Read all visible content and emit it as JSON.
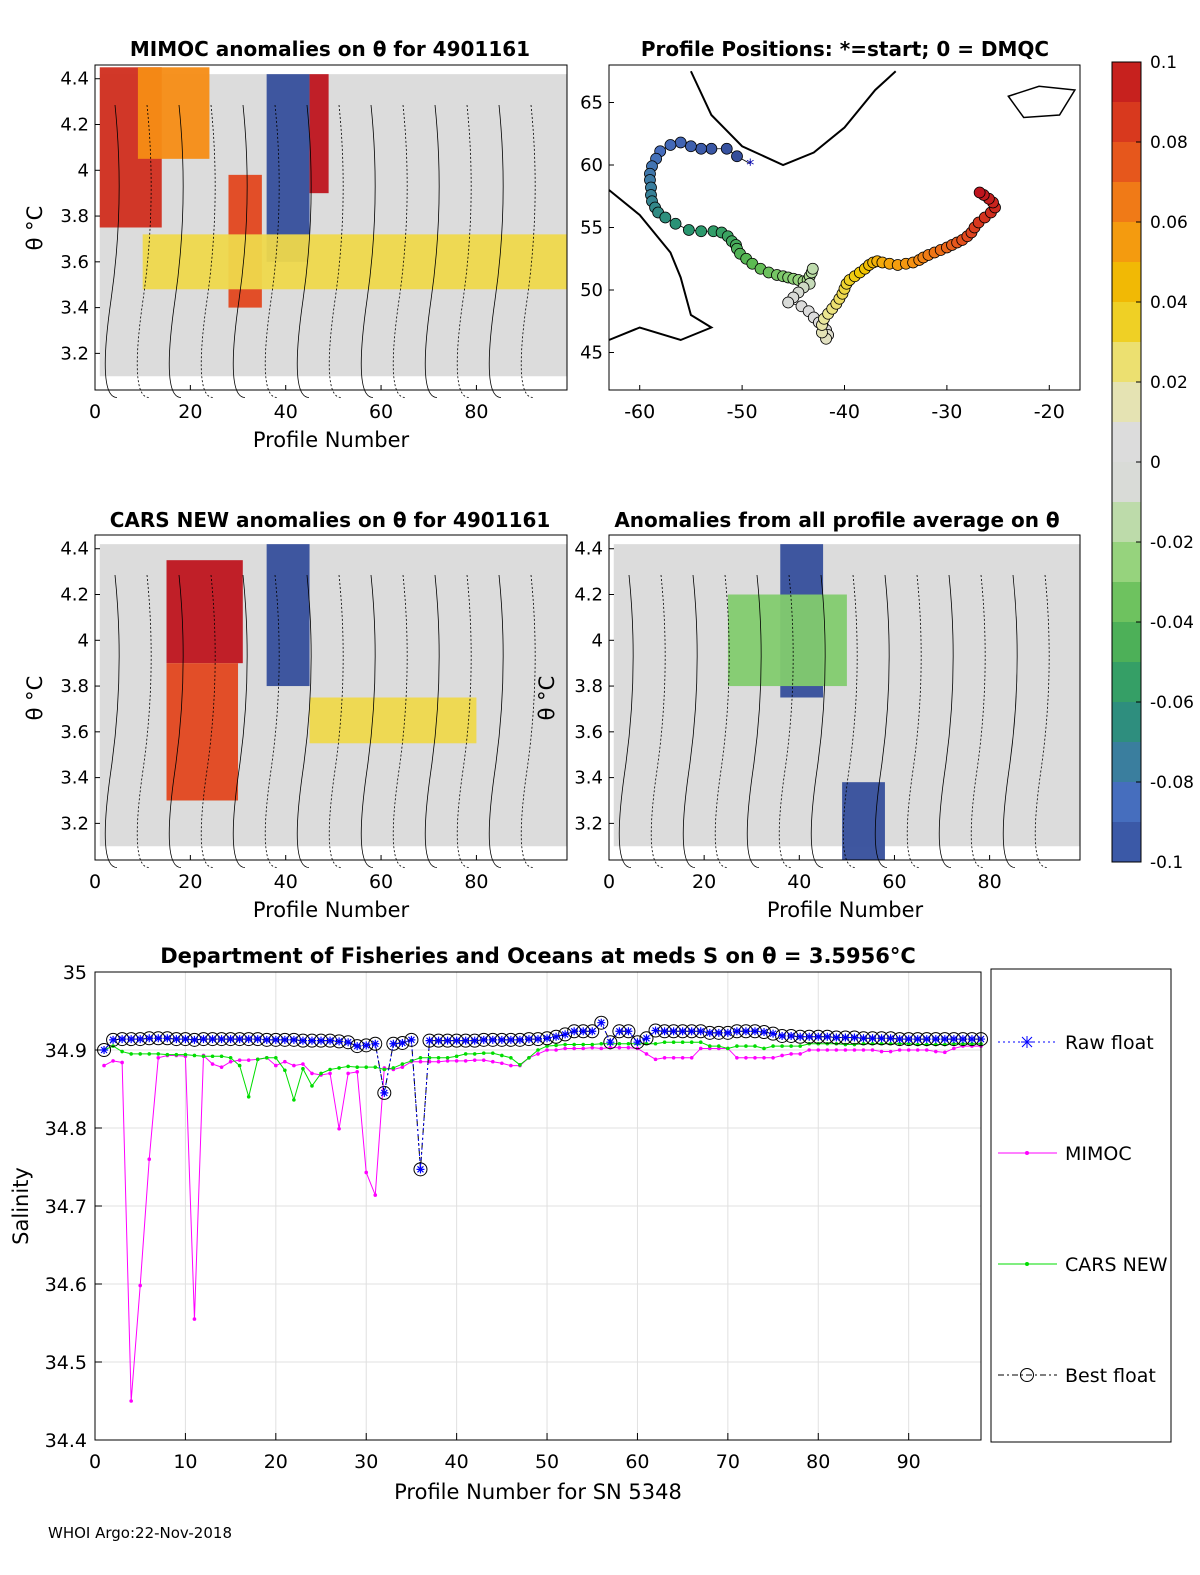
{
  "footer": "WHOI Argo:22-Nov-2018",
  "colorbar": {
    "ticks": [
      "0.1",
      "0.08",
      "0.06",
      "0.04",
      "0.02",
      "0",
      "-0.02",
      "-0.04",
      "-0.06",
      "-0.08",
      "-0.1"
    ],
    "range": [
      -0.1,
      0.1
    ]
  },
  "chart_data": [
    {
      "id": "mimoc_anom",
      "type": "heatmap",
      "title": "MIMOC anomalies on θ  for 4901161",
      "xlabel": "Profile Number",
      "ylabel": "θ °C",
      "xlim": [
        0,
        99
      ],
      "ylim": [
        3.04,
        4.46
      ],
      "xticks": [
        0,
        20,
        40,
        60,
        80
      ],
      "yticks": [
        3.2,
        3.4,
        3.6,
        3.8,
        4,
        4.2,
        4.4
      ],
      "color_range": [
        -0.1,
        0.1
      ],
      "features": [
        {
          "desc": "positive anomaly block",
          "x": [
            1,
            14
          ],
          "y": [
            3.75,
            4.45
          ],
          "value": 0.09
        },
        {
          "desc": "positive anomaly block",
          "x": [
            9,
            24
          ],
          "y": [
            4.05,
            4.45
          ],
          "value": 0.06
        },
        {
          "desc": "positive anomaly block",
          "x": [
            28,
            35
          ],
          "y": [
            3.4,
            3.98
          ],
          "value": 0.08
        },
        {
          "desc": "negative anomaly column",
          "x": [
            36,
            45
          ],
          "y": [
            3.6,
            4.42
          ],
          "value": -0.1
        },
        {
          "desc": "positive anomaly column",
          "x": [
            45,
            49
          ],
          "y": [
            3.9,
            4.42
          ],
          "value": 0.1
        },
        {
          "desc": "weak positive band",
          "x": [
            10,
            99
          ],
          "y": [
            3.48,
            3.72
          ],
          "value": 0.03
        }
      ]
    },
    {
      "id": "positions",
      "type": "scatter",
      "title": "Profile Positions: *=start; 0 = DMQC",
      "xlim": [
        -63,
        -17
      ],
      "ylim": [
        42,
        68
      ],
      "xticks": [
        -60,
        -50,
        -40,
        -30,
        -20
      ],
      "yticks": [
        45,
        50,
        55,
        60,
        65
      ],
      "start": [
        -49.2,
        60.1
      ],
      "lon": [
        -50.5,
        -51.5,
        -53,
        -54,
        -55,
        -56,
        -57,
        -58,
        -58.4,
        -58.8,
        -59,
        -59,
        -58.9,
        -58.9,
        -58.8,
        -58.5,
        -58.2,
        -57.5,
        -56.5,
        -55.2,
        -54,
        -52.8,
        -52,
        -51.4,
        -51,
        -50.6,
        -50.5,
        -50.2,
        -49.6,
        -49,
        -48.2,
        -47.4,
        -46.6,
        -46,
        -45.5,
        -45,
        -44.5,
        -44,
        -43.6,
        -43.4,
        -43.2,
        -43.1,
        -43.4,
        -44,
        -44.5,
        -45,
        -45.5,
        -44.2,
        -43.5,
        -43,
        -42.5,
        -42.1,
        -41.8,
        -41.6,
        -41.8,
        -42.2,
        -42.2,
        -42,
        -41.6,
        -41.2,
        -40.8,
        -40.5,
        -40.2,
        -40,
        -39.8,
        -39.5,
        -39,
        -38.5,
        -38,
        -37.6,
        -37.2,
        -36.8,
        -36.3,
        -35.6,
        -34.8,
        -34,
        -33.3,
        -32.7,
        -32.3,
        -31.8,
        -31.2,
        -30.6,
        -30,
        -29.5,
        -29,
        -28.5,
        -28,
        -27.6,
        -27.3,
        -26.9,
        -26.3,
        -25.7,
        -25.3,
        -25.5,
        -25.9,
        -26.4,
        -26.8
      ],
      "lat": [
        60.7,
        61.3,
        61.3,
        61.3,
        61.5,
        61.8,
        61.6,
        61.1,
        60.5,
        59.9,
        59.3,
        58.8,
        58.2,
        57.6,
        57.1,
        56.6,
        56.2,
        55.8,
        55.3,
        54.8,
        54.7,
        54.7,
        54.6,
        54.3,
        53.9,
        53.6,
        53.3,
        52.9,
        52.5,
        52.1,
        51.7,
        51.4,
        51.2,
        51.1,
        51,
        50.9,
        50.8,
        50.7,
        50.8,
        51.1,
        51.4,
        51.7,
        50.5,
        50.2,
        49.8,
        49.4,
        49,
        48.7,
        48.3,
        47.8,
        47.4,
        47.1,
        46.8,
        46.4,
        46.1,
        46.6,
        47.2,
        47.7,
        48.1,
        48.5,
        48.9,
        49.3,
        49.7,
        50.1,
        50.5,
        50.8,
        51.1,
        51.4,
        51.7,
        52,
        52.2,
        52.3,
        52.2,
        52.1,
        52,
        52.1,
        52.2,
        52.4,
        52.6,
        52.8,
        53,
        53.2,
        53.4,
        53.6,
        53.8,
        54,
        54.3,
        54.6,
        55,
        55.4,
        55.8,
        56.2,
        56.6,
        57,
        57.3,
        57.6,
        57.8
      ],
      "color_by": "profile number (blue = first, red = last)"
    },
    {
      "id": "cars_anom",
      "type": "heatmap",
      "title": "CARS NEW anomalies on θ for 4901161",
      "xlabel": "Profile Number",
      "ylabel": "θ °C",
      "xlim": [
        0,
        99
      ],
      "ylim": [
        3.04,
        4.46
      ],
      "xticks": [
        0,
        20,
        40,
        60,
        80
      ],
      "yticks": [
        3.2,
        3.4,
        3.6,
        3.8,
        4,
        4.2,
        4.4
      ],
      "color_range": [
        -0.1,
        0.1
      ],
      "features": [
        {
          "desc": "positive anomaly block",
          "x": [
            15,
            31
          ],
          "y": [
            3.9,
            4.35
          ],
          "value": 0.1
        },
        {
          "desc": "positive anomaly block",
          "x": [
            15,
            30
          ],
          "y": [
            3.3,
            3.9
          ],
          "value": 0.08
        },
        {
          "desc": "negative anomaly column",
          "x": [
            36,
            45
          ],
          "y": [
            3.8,
            4.42
          ],
          "value": -0.1
        },
        {
          "desc": "weak positive band",
          "x": [
            45,
            80
          ],
          "y": [
            3.55,
            3.75
          ],
          "value": 0.03
        }
      ]
    },
    {
      "id": "profile_avg_anom",
      "type": "heatmap",
      "title": "Anomalies from all profile average on θ",
      "xlabel": "Profile Number",
      "ylabel": "θ °C",
      "xlim": [
        0,
        99
      ],
      "ylim": [
        3.04,
        4.46
      ],
      "xticks": [
        0,
        20,
        40,
        60,
        80
      ],
      "yticks": [
        3.2,
        3.4,
        3.6,
        3.8,
        4,
        4.2,
        4.4
      ],
      "color_range": [
        -0.1,
        0.1
      ],
      "features": [
        {
          "desc": "negative anomaly column",
          "x": [
            36,
            45
          ],
          "y": [
            3.75,
            4.42
          ],
          "value": -0.1
        },
        {
          "desc": "negative anomaly block",
          "x": [
            49,
            58
          ],
          "y": [
            3.04,
            3.38
          ],
          "value": -0.1
        },
        {
          "desc": "weak negative band",
          "x": [
            25,
            50
          ],
          "y": [
            3.8,
            4.2
          ],
          "value": -0.03
        }
      ]
    },
    {
      "id": "salinity",
      "type": "line",
      "title": "Department of Fisheries and Oceans at meds S on θ = 3.5956°C",
      "xlabel": "Profile Number for SN 5348",
      "ylabel": "Salinity",
      "xlim": [
        0,
        98
      ],
      "ylim": [
        34.4,
        35
      ],
      "xticks": [
        0,
        10,
        20,
        30,
        40,
        50,
        60,
        70,
        80,
        90
      ],
      "yticks": [
        34.4,
        34.5,
        34.6,
        34.7,
        34.8,
        34.9,
        35
      ],
      "x": [
        1,
        2,
        3,
        4,
        5,
        6,
        7,
        8,
        9,
        10,
        11,
        12,
        13,
        14,
        15,
        16,
        17,
        18,
        19,
        20,
        21,
        22,
        23,
        24,
        25,
        26,
        27,
        28,
        29,
        30,
        31,
        32,
        33,
        34,
        35,
        36,
        37,
        38,
        39,
        40,
        41,
        42,
        43,
        44,
        45,
        46,
        47,
        48,
        49,
        50,
        51,
        52,
        53,
        54,
        55,
        56,
        57,
        58,
        59,
        60,
        61,
        62,
        63,
        64,
        65,
        66,
        67,
        68,
        69,
        70,
        71,
        72,
        73,
        74,
        75,
        76,
        77,
        78,
        79,
        80,
        81,
        82,
        83,
        84,
        85,
        86,
        87,
        88,
        89,
        90,
        91,
        92,
        93,
        94,
        95,
        96,
        97,
        98
      ],
      "series": [
        {
          "name": "Raw float",
          "color": "#0000ff",
          "values": [
            34.9,
            34.913,
            34.914,
            34.914,
            34.914,
            34.915,
            34.915,
            34.915,
            34.914,
            34.914,
            34.913,
            34.914,
            34.914,
            34.914,
            34.914,
            34.914,
            34.914,
            34.914,
            34.913,
            34.913,
            34.913,
            34.913,
            34.912,
            34.912,
            34.912,
            34.912,
            34.911,
            34.91,
            34.905,
            34.906,
            34.908,
            34.845,
            34.908,
            34.909,
            34.913,
            34.747,
            34.912,
            34.912,
            34.912,
            34.912,
            34.912,
            34.912,
            34.913,
            34.913,
            34.913,
            34.913,
            34.913,
            34.914,
            34.914,
            34.915,
            34.917,
            34.92,
            34.924,
            34.924,
            34.924,
            34.935,
            34.91,
            34.924,
            34.924,
            34.91,
            34.915,
            34.925,
            34.924,
            34.924,
            34.924,
            34.924,
            34.924,
            34.922,
            34.922,
            34.922,
            34.924,
            34.924,
            34.924,
            34.923,
            34.921,
            34.918,
            34.918,
            34.917,
            34.917,
            34.917,
            34.917,
            34.916,
            34.916,
            34.916,
            34.915,
            34.915,
            34.915,
            34.915,
            34.914,
            34.914,
            34.914,
            34.914,
            34.914,
            34.914,
            34.914,
            34.914,
            34.914,
            34.914
          ]
        },
        {
          "name": "MIMOC",
          "color": "#ff00ff",
          "values": [
            34.88,
            34.886,
            34.884,
            34.45,
            34.598,
            34.76,
            34.89,
            34.893,
            34.893,
            34.892,
            34.555,
            34.893,
            34.882,
            34.878,
            34.885,
            34.887,
            34.887,
            34.888,
            34.89,
            34.88,
            34.885,
            34.88,
            34.882,
            34.87,
            34.868,
            34.87,
            34.799,
            34.87,
            34.872,
            34.743,
            34.714,
            34.877,
            34.875,
            34.878,
            34.885,
            34.885,
            34.885,
            34.885,
            34.886,
            34.886,
            34.886,
            34.887,
            34.887,
            34.885,
            34.883,
            34.88,
            34.88,
            34.89,
            34.895,
            34.9,
            34.9,
            34.902,
            34.902,
            34.902,
            34.903,
            34.902,
            34.903,
            34.903,
            34.903,
            34.902,
            34.895,
            34.888,
            34.89,
            34.89,
            34.89,
            34.89,
            34.902,
            34.902,
            34.902,
            34.902,
            34.89,
            34.89,
            34.89,
            34.89,
            34.89,
            34.893,
            34.895,
            34.895,
            34.9,
            34.9,
            34.9,
            34.9,
            34.9,
            34.9,
            34.9,
            34.9,
            34.898,
            34.898,
            34.9,
            34.9,
            34.9,
            34.9,
            34.898,
            34.897,
            34.902,
            34.905,
            34.905,
            34.905
          ]
        },
        {
          "name": "CARS NEW",
          "color": "#00dd00",
          "values": [
            34.9,
            34.905,
            34.898,
            34.895,
            34.895,
            34.895,
            34.895,
            34.894,
            34.894,
            34.894,
            34.893,
            34.892,
            34.892,
            34.892,
            34.89,
            34.88,
            34.84,
            34.888,
            34.89,
            34.89,
            34.874,
            34.836,
            34.876,
            34.854,
            34.87,
            34.875,
            34.877,
            34.879,
            34.878,
            34.878,
            34.878,
            34.875,
            34.877,
            34.882,
            34.886,
            34.89,
            34.89,
            34.89,
            34.89,
            34.892,
            34.895,
            34.895,
            34.896,
            34.896,
            34.893,
            34.89,
            34.881,
            34.89,
            34.9,
            34.905,
            34.906,
            34.907,
            34.907,
            34.907,
            34.907,
            34.908,
            34.908,
            34.908,
            34.908,
            34.908,
            34.908,
            34.908,
            34.91,
            34.91,
            34.91,
            34.91,
            34.91,
            34.905,
            34.905,
            34.902,
            34.905,
            34.905,
            34.905,
            34.902,
            34.905,
            34.905,
            34.905,
            34.905,
            34.908,
            34.908,
            34.908,
            34.908,
            34.907,
            34.907,
            34.908,
            34.908,
            34.908,
            34.908,
            34.908,
            34.908,
            34.907,
            34.907,
            34.907,
            34.907,
            34.908,
            34.908,
            34.908,
            34.908
          ]
        },
        {
          "name": "Best float",
          "color": "#000000",
          "values": [
            34.9,
            34.913,
            34.914,
            34.914,
            34.914,
            34.915,
            34.915,
            34.915,
            34.914,
            34.914,
            34.913,
            34.914,
            34.914,
            34.914,
            34.914,
            34.914,
            34.914,
            34.914,
            34.913,
            34.913,
            34.913,
            34.913,
            34.912,
            34.912,
            34.912,
            34.912,
            34.911,
            34.91,
            34.905,
            34.906,
            34.908,
            34.845,
            34.908,
            34.909,
            34.913,
            34.747,
            34.912,
            34.912,
            34.912,
            34.912,
            34.912,
            34.912,
            34.913,
            34.913,
            34.913,
            34.913,
            34.913,
            34.914,
            34.914,
            34.915,
            34.917,
            34.92,
            34.924,
            34.924,
            34.924,
            34.935,
            34.91,
            34.924,
            34.924,
            34.91,
            34.915,
            34.925,
            34.924,
            34.924,
            34.924,
            34.924,
            34.924,
            34.922,
            34.922,
            34.922,
            34.924,
            34.924,
            34.924,
            34.923,
            34.921,
            34.918,
            34.918,
            34.917,
            34.917,
            34.917,
            34.917,
            34.916,
            34.916,
            34.916,
            34.915,
            34.915,
            34.915,
            34.915,
            34.914,
            34.914,
            34.914,
            34.914,
            34.914,
            34.914,
            34.914,
            34.914,
            34.914,
            34.914
          ]
        }
      ],
      "legend": [
        "Raw float",
        "MIMOC",
        "CARS NEW",
        "Best float"
      ]
    }
  ]
}
